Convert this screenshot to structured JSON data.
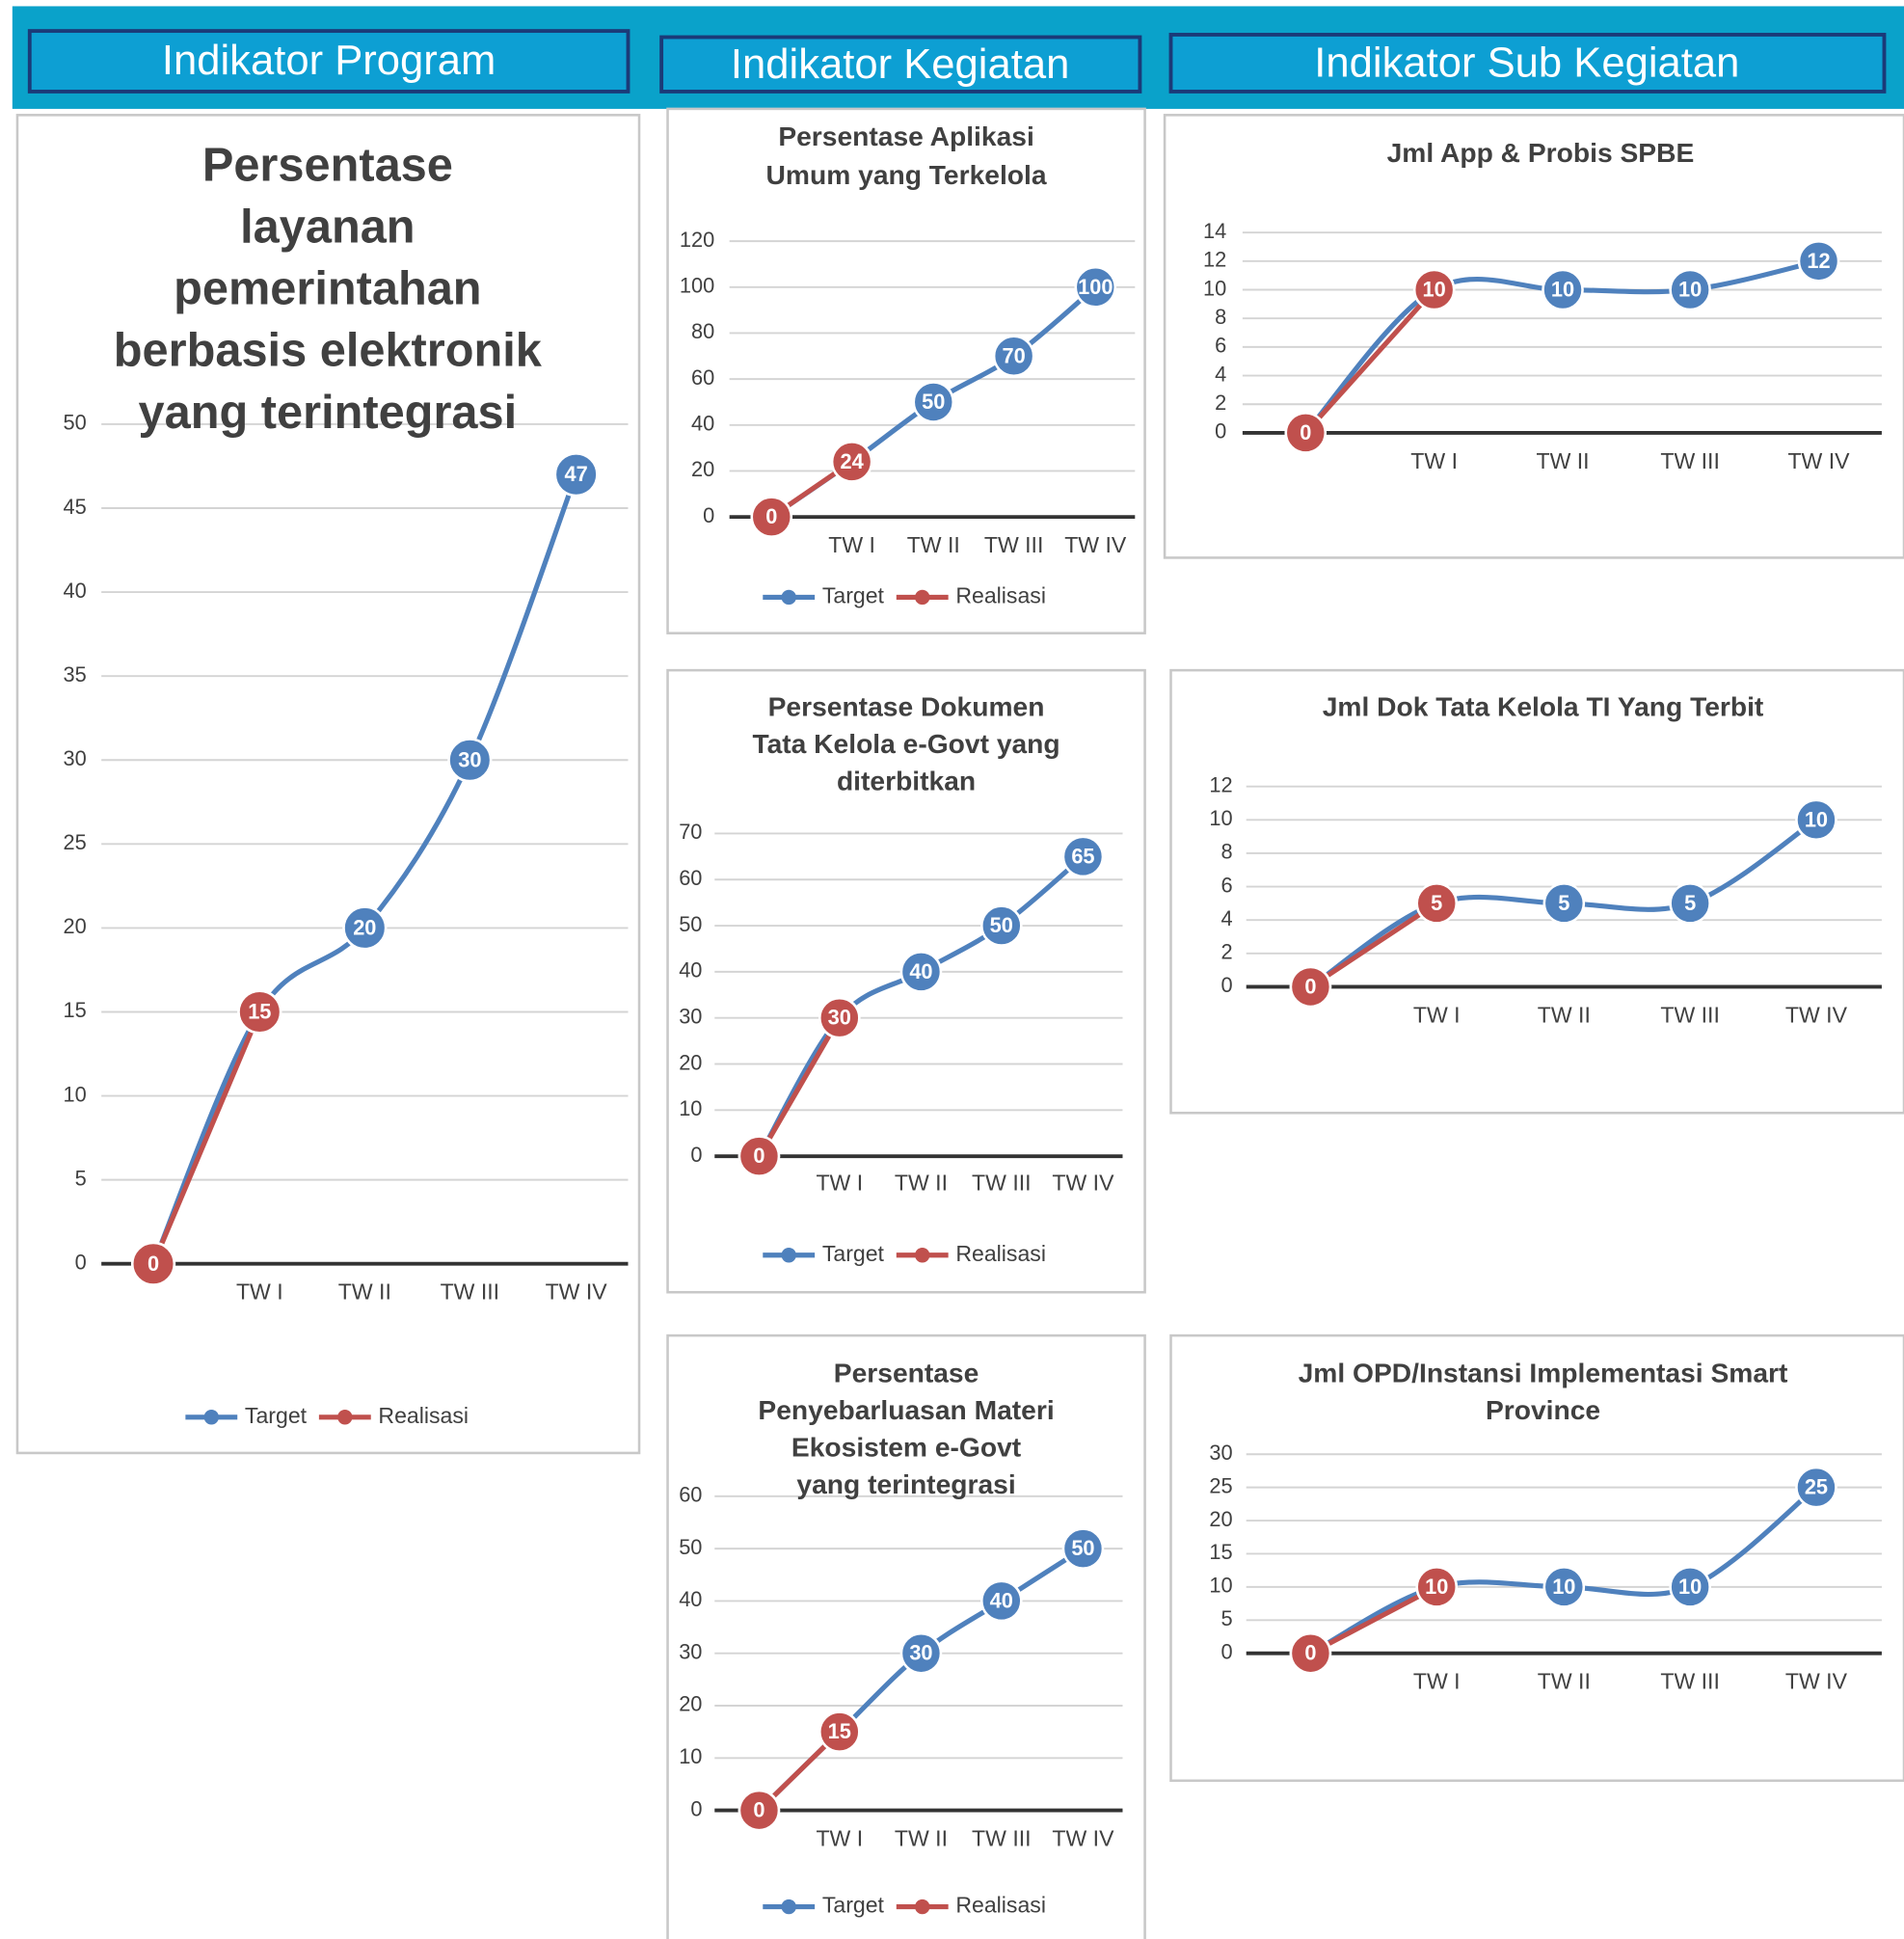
{
  "headers": [
    "Indikator Program",
    "Indikator Kegiatan",
    "Indikator Sub Kegiatan"
  ],
  "chart_data": [
    {
      "type": "line",
      "title": [
        "Persentase",
        "layanan",
        "pemerintahan",
        "berbasis elektronik",
        "yang terintegrasi"
      ],
      "categories": [
        null,
        "TW I",
        "TW II",
        "TW III",
        "TW IV"
      ],
      "series": [
        {
          "name": "Target",
          "color": "#4f81bd",
          "values": [
            0,
            15,
            20,
            30,
            47
          ]
        },
        {
          "name": "Realisasi",
          "color": "#c0504d",
          "values": [
            0,
            15,
            null,
            null,
            null
          ]
        }
      ],
      "ylim": [
        0,
        50
      ],
      "yticks": [
        0,
        5,
        10,
        15,
        20,
        25,
        30,
        35,
        40,
        45,
        50
      ],
      "grid": true,
      "legend": "bottom"
    },
    {
      "type": "line",
      "title": [
        "Persentase Aplikasi",
        "Umum yang Terkelola"
      ],
      "categories": [
        null,
        "TW I",
        "TW II",
        "TW III",
        "TW IV"
      ],
      "series": [
        {
          "name": "Target",
          "color": "#4f81bd",
          "values": [
            0,
            24,
            50,
            70,
            100
          ]
        },
        {
          "name": "Realisasi",
          "color": "#c0504d",
          "values": [
            0,
            24,
            null,
            null,
            null
          ]
        }
      ],
      "ylim": [
        0,
        120
      ],
      "yticks": [
        0,
        20,
        40,
        60,
        80,
        100,
        120
      ],
      "grid": true,
      "legend": "bottom"
    },
    {
      "type": "line",
      "title": [
        "Persentase Dokumen",
        "Tata Kelola  e-Govt yang",
        "diterbitkan"
      ],
      "categories": [
        null,
        "TW I",
        "TW II",
        "TW III",
        "TW IV"
      ],
      "series": [
        {
          "name": "Target",
          "color": "#4f81bd",
          "values": [
            0,
            30,
            40,
            50,
            65
          ]
        },
        {
          "name": "Realisasi",
          "color": "#c0504d",
          "values": [
            0,
            30,
            null,
            null,
            null
          ]
        }
      ],
      "ylim": [
        0,
        70
      ],
      "yticks": [
        0,
        10,
        20,
        30,
        40,
        50,
        60,
        70
      ],
      "grid": true,
      "legend": "bottom"
    },
    {
      "type": "line",
      "title": [
        "Persentase",
        "Penyebarluasan Materi",
        "Ekosistem e-Govt",
        "yang terintegrasi"
      ],
      "categories": [
        null,
        "TW I",
        "TW II",
        "TW III",
        "TW IV"
      ],
      "series": [
        {
          "name": "Target",
          "color": "#4f81bd",
          "values": [
            0,
            15,
            30,
            40,
            50
          ]
        },
        {
          "name": "Realisasi",
          "color": "#c0504d",
          "values": [
            0,
            15,
            null,
            null,
            null
          ]
        }
      ],
      "ylim": [
        0,
        60
      ],
      "yticks": [
        0,
        10,
        20,
        30,
        40,
        50,
        60
      ],
      "grid": true,
      "legend": "bottom"
    },
    {
      "type": "line",
      "title": [
        "Jml App & Probis SPBE"
      ],
      "categories": [
        null,
        "TW I",
        "TW II",
        "TW III",
        "TW IV"
      ],
      "series": [
        {
          "color": "#4f81bd",
          "values": [
            0,
            10,
            10,
            10,
            12
          ]
        },
        {
          "color": "#c0504d",
          "values": [
            0,
            10,
            null,
            null,
            null
          ]
        }
      ],
      "ylim": [
        0,
        14
      ],
      "yticks": [
        0,
        2,
        4,
        6,
        8,
        10,
        12,
        14
      ],
      "grid": true
    },
    {
      "type": "line",
      "title": [
        "Jml Dok Tata Kelola TI Yang Terbit"
      ],
      "categories": [
        null,
        "TW I",
        "TW II",
        "TW III",
        "TW IV"
      ],
      "series": [
        {
          "color": "#4f81bd",
          "values": [
            0,
            5,
            5,
            5,
            10
          ]
        },
        {
          "color": "#c0504d",
          "values": [
            0,
            5,
            null,
            null,
            null
          ]
        }
      ],
      "ylim": [
        0,
        12
      ],
      "yticks": [
        0,
        2,
        4,
        6,
        8,
        10,
        12
      ],
      "grid": true
    },
    {
      "type": "line",
      "title": [
        "Jml OPD/Instansi Implementasi Smart",
        "Province"
      ],
      "categories": [
        null,
        "TW I",
        "TW II",
        "TW III",
        "TW IV"
      ],
      "series": [
        {
          "color": "#4f81bd",
          "values": [
            0,
            10,
            10,
            10,
            25
          ]
        },
        {
          "color": "#c0504d",
          "values": [
            0,
            10,
            null,
            null,
            null
          ]
        }
      ],
      "ylim": [
        0,
        30
      ],
      "yticks": [
        0,
        5,
        10,
        15,
        20,
        25,
        30
      ],
      "grid": true
    }
  ]
}
